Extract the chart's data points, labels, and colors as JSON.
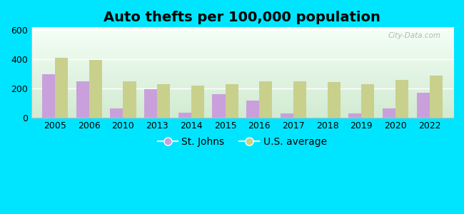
{
  "title": "Auto thefts per 100,000 population",
  "years": [
    2005,
    2006,
    2010,
    2013,
    2014,
    2015,
    2016,
    2017,
    2018,
    2019,
    2020,
    2022
  ],
  "st_johns": [
    300,
    248,
    62,
    197,
    35,
    162,
    117,
    30,
    0,
    30,
    63,
    172
  ],
  "us_average": [
    413,
    398,
    247,
    229,
    222,
    229,
    248,
    248,
    243,
    229,
    260,
    291
  ],
  "st_johns_color": "#c9a0dc",
  "us_avg_color": "#c8d08c",
  "ylim": [
    0,
    620
  ],
  "yticks": [
    0,
    200,
    400,
    600
  ],
  "outer_bg": "#00e5ff",
  "bar_width": 0.38,
  "title_fontsize": 14,
  "legend_fontsize": 10,
  "tick_fontsize": 9,
  "watermark_text": "City-Data.com"
}
